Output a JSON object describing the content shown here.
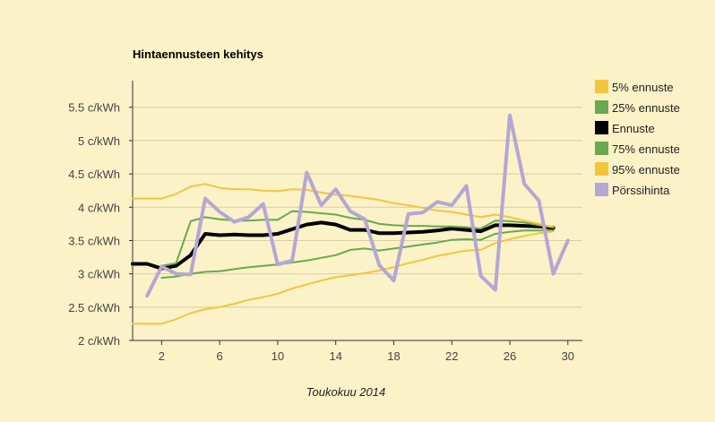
{
  "chart_data": {
    "type": "line",
    "title": "Hintaennusteen kehitys",
    "xlabel": "Toukokuu 2014",
    "ylabel": "",
    "xlim": [
      0,
      31
    ],
    "ylim": [
      2,
      5.9
    ],
    "x_ticks": [
      2,
      6,
      10,
      14,
      18,
      22,
      26,
      30
    ],
    "y_ticks": [
      {
        "value": 2,
        "label": "2 c/kWh"
      },
      {
        "value": 2.5,
        "label": "2.5 c/kWh"
      },
      {
        "value": 3,
        "label": "3 c/kWh"
      },
      {
        "value": 3.5,
        "label": "3.5 c/kWh"
      },
      {
        "value": 4,
        "label": "4 c/kWh"
      },
      {
        "value": 4.5,
        "label": "4.5 c/kWh"
      },
      {
        "value": 5,
        "label": "5 c/kWh"
      },
      {
        "value": 5.5,
        "label": "5.5 c/kWh"
      }
    ],
    "grid": true,
    "legend_position": "right",
    "series": [
      {
        "name": "5% ennuste",
        "color": "#f2c53d",
        "width": 2,
        "x": [
          0,
          1,
          2,
          3,
          4,
          5,
          6,
          7,
          8,
          9,
          10,
          11,
          12,
          13,
          14,
          15,
          16,
          17,
          18,
          19,
          20,
          21,
          22,
          23,
          24,
          25,
          26,
          27,
          28,
          29
        ],
        "values": [
          2.25,
          2.25,
          2.25,
          2.32,
          2.41,
          2.47,
          2.5,
          2.55,
          2.61,
          2.65,
          2.7,
          2.78,
          2.84,
          2.9,
          2.95,
          2.98,
          3.01,
          3.05,
          3.1,
          3.16,
          3.21,
          3.27,
          3.31,
          3.35,
          3.36,
          3.46,
          3.52,
          3.57,
          3.61,
          3.64
        ]
      },
      {
        "name": "25% ennuste",
        "color": "#6aa84f",
        "width": 2,
        "x": [
          2,
          3,
          4,
          5,
          6,
          7,
          8,
          9,
          10,
          11,
          12,
          13,
          14,
          15,
          16,
          17,
          18,
          19,
          20,
          21,
          22,
          23,
          24,
          25,
          26,
          27,
          28,
          29
        ],
        "values": [
          2.94,
          2.96,
          3.0,
          3.03,
          3.04,
          3.07,
          3.1,
          3.12,
          3.14,
          3.17,
          3.2,
          3.24,
          3.28,
          3.36,
          3.38,
          3.35,
          3.38,
          3.41,
          3.44,
          3.47,
          3.51,
          3.52,
          3.51,
          3.6,
          3.63,
          3.65,
          3.65,
          3.66
        ]
      },
      {
        "name": "Ennuste",
        "color": "#000000",
        "width": 4,
        "x": [
          0,
          1,
          2,
          3,
          4,
          5,
          6,
          7,
          8,
          9,
          10,
          11,
          12,
          13,
          14,
          15,
          16,
          17,
          18,
          19,
          20,
          21,
          22,
          23,
          24,
          25,
          26,
          27,
          28,
          29
        ],
        "values": [
          3.15,
          3.15,
          3.08,
          3.12,
          3.28,
          3.6,
          3.58,
          3.59,
          3.58,
          3.58,
          3.6,
          3.67,
          3.74,
          3.77,
          3.74,
          3.66,
          3.66,
          3.61,
          3.61,
          3.62,
          3.63,
          3.65,
          3.68,
          3.66,
          3.64,
          3.73,
          3.73,
          3.72,
          3.71,
          3.69
        ]
      },
      {
        "name": "75% ennuste",
        "color": "#6aa84f",
        "width": 2,
        "x": [
          2,
          3,
          4,
          5,
          6,
          7,
          8,
          9,
          10,
          11,
          12,
          13,
          14,
          15,
          16,
          17,
          18,
          19,
          20,
          21,
          22,
          23,
          24,
          25,
          26,
          27,
          28,
          29
        ],
        "values": [
          3.12,
          3.16,
          3.79,
          3.85,
          3.82,
          3.8,
          3.8,
          3.81,
          3.81,
          3.94,
          3.93,
          3.91,
          3.89,
          3.84,
          3.81,
          3.75,
          3.73,
          3.72,
          3.72,
          3.71,
          3.71,
          3.7,
          3.68,
          3.8,
          3.79,
          3.77,
          3.73,
          3.7
        ]
      },
      {
        "name": "95% ennuste",
        "color": "#f2c53d",
        "width": 2,
        "x": [
          0,
          1,
          2,
          3,
          4,
          5,
          6,
          7,
          8,
          9,
          10,
          11,
          12,
          13,
          14,
          15,
          16,
          17,
          18,
          19,
          20,
          21,
          22,
          23,
          24,
          25,
          26,
          27,
          28,
          29
        ],
        "values": [
          4.13,
          4.13,
          4.13,
          4.2,
          4.31,
          4.35,
          4.29,
          4.27,
          4.27,
          4.25,
          4.24,
          4.27,
          4.26,
          4.22,
          4.19,
          4.17,
          4.14,
          4.11,
          4.06,
          4.03,
          3.99,
          3.95,
          3.93,
          3.89,
          3.85,
          3.89,
          3.85,
          3.8,
          3.75,
          3.7
        ]
      },
      {
        "name": "Pörssihinta",
        "color": "#b4a7d6",
        "width": 4,
        "x": [
          1,
          2,
          3,
          4,
          5,
          6,
          7,
          8,
          9,
          10,
          11,
          12,
          13,
          14,
          15,
          16,
          17,
          18,
          19,
          20,
          21,
          22,
          23,
          24,
          25,
          26,
          27,
          28,
          29,
          30
        ],
        "values": [
          2.67,
          3.11,
          3.0,
          2.99,
          4.13,
          3.93,
          3.78,
          3.85,
          4.05,
          3.14,
          3.2,
          4.52,
          4.03,
          4.27,
          3.94,
          3.82,
          3.13,
          2.9,
          3.9,
          3.92,
          4.08,
          4.03,
          4.32,
          2.97,
          2.76,
          5.38,
          4.35,
          4.1,
          3.0,
          3.5
        ]
      }
    ]
  }
}
